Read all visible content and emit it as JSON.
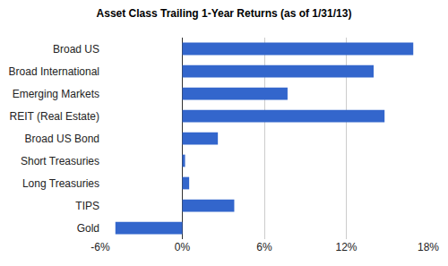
{
  "chart_data": {
    "type": "bar",
    "orientation": "horizontal",
    "title": "Asset Class Trailing 1-Year Returns (as of 1/31/13)",
    "categories": [
      "Broad US",
      "Broad International",
      "Emerging Markets",
      "REIT (Real Estate)",
      "Broad US Bond",
      "Short Treasuries",
      "Long Treasuries",
      "TIPS",
      "Gold"
    ],
    "values": [
      16.9,
      14.0,
      7.7,
      14.8,
      2.6,
      0.2,
      0.5,
      3.8,
      -4.9
    ],
    "color": "#3366cc",
    "xlim": [
      -6,
      18
    ],
    "xticks": [
      {
        "value": -6,
        "label": "-6%"
      },
      {
        "value": 0,
        "label": "0%"
      },
      {
        "value": 6,
        "label": "6%"
      },
      {
        "value": 12,
        "label": "12%"
      },
      {
        "value": 18,
        "label": "18%"
      }
    ],
    "grid": true
  }
}
